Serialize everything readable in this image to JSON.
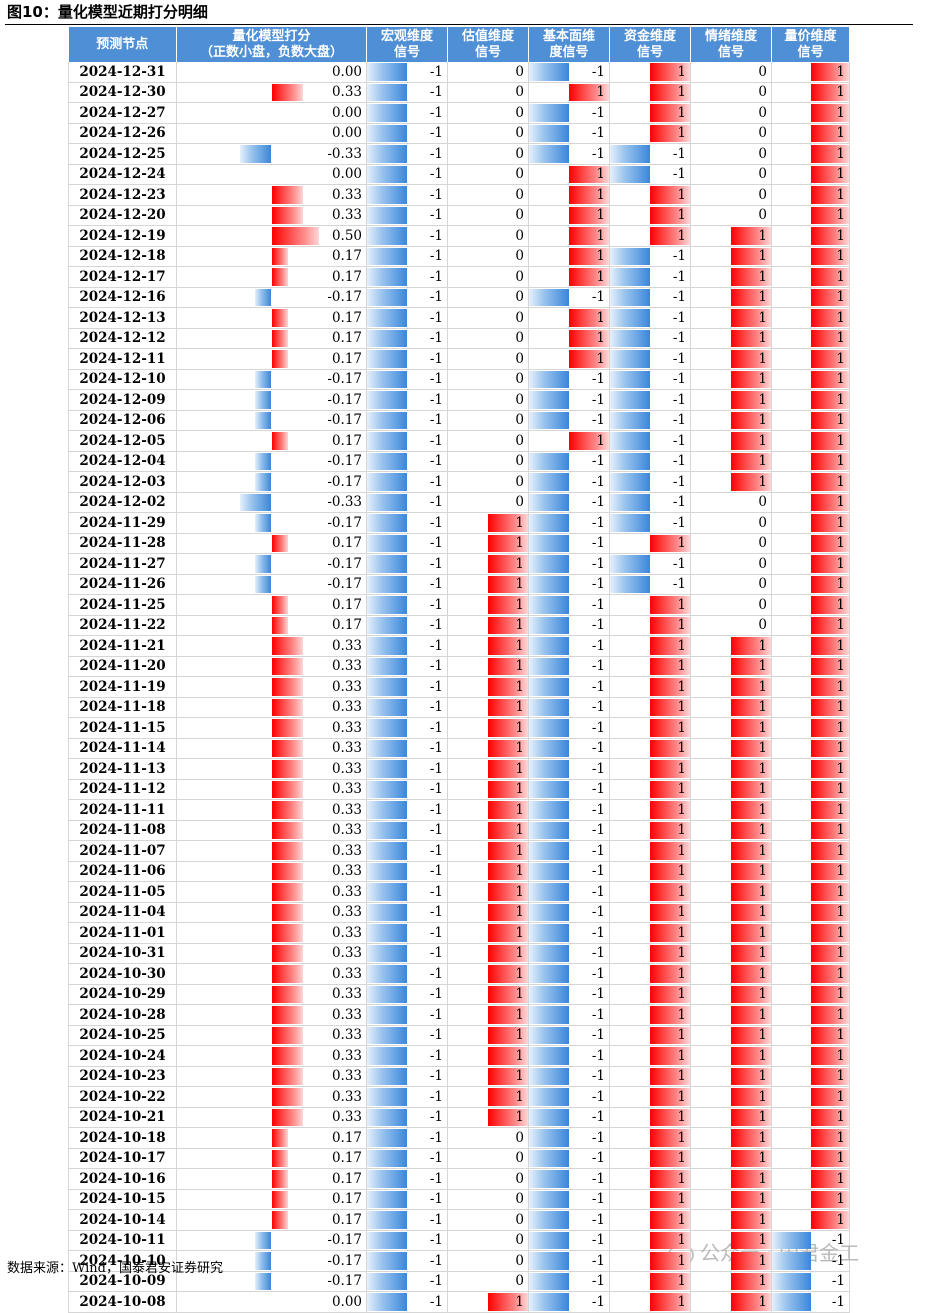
{
  "title": "图10：量化模型近期打分明细",
  "source": "数据来源：Wind，国泰君安证券研究",
  "watermark": "公众号 · 国君金工",
  "headers": [
    "预测节点",
    "量化模型打分\n（正数小盘，负数大盘）",
    "宏观维度\n信号",
    "估值维度\n信号",
    "基本面维\n度信号",
    "资金维度\n信号",
    "情绪维度\n信号",
    "量价维度\n信号"
  ],
  "colors": {
    "header": "#4f8fd6",
    "positive": "#ff0000",
    "negative": "#3a86db"
  },
  "rows": [
    [
      "2024-12-31",
      "0.00",
      "-1",
      "0",
      "-1",
      "1",
      "0",
      "1"
    ],
    [
      "2024-12-30",
      "0.33",
      "-1",
      "0",
      "1",
      "1",
      "0",
      "1"
    ],
    [
      "2024-12-27",
      "0.00",
      "-1",
      "0",
      "-1",
      "1",
      "0",
      "1"
    ],
    [
      "2024-12-26",
      "0.00",
      "-1",
      "0",
      "-1",
      "1",
      "0",
      "1"
    ],
    [
      "2024-12-25",
      "-0.33",
      "-1",
      "0",
      "-1",
      "-1",
      "0",
      "1"
    ],
    [
      "2024-12-24",
      "0.00",
      "-1",
      "0",
      "1",
      "-1",
      "0",
      "1"
    ],
    [
      "2024-12-23",
      "0.33",
      "-1",
      "0",
      "1",
      "1",
      "0",
      "1"
    ],
    [
      "2024-12-20",
      "0.33",
      "-1",
      "0",
      "1",
      "1",
      "0",
      "1"
    ],
    [
      "2024-12-19",
      "0.50",
      "-1",
      "0",
      "1",
      "1",
      "1",
      "1"
    ],
    [
      "2024-12-18",
      "0.17",
      "-1",
      "0",
      "1",
      "-1",
      "1",
      "1"
    ],
    [
      "2024-12-17",
      "0.17",
      "-1",
      "0",
      "1",
      "-1",
      "1",
      "1"
    ],
    [
      "2024-12-16",
      "-0.17",
      "-1",
      "0",
      "-1",
      "-1",
      "1",
      "1"
    ],
    [
      "2024-12-13",
      "0.17",
      "-1",
      "0",
      "1",
      "-1",
      "1",
      "1"
    ],
    [
      "2024-12-12",
      "0.17",
      "-1",
      "0",
      "1",
      "-1",
      "1",
      "1"
    ],
    [
      "2024-12-11",
      "0.17",
      "-1",
      "0",
      "1",
      "-1",
      "1",
      "1"
    ],
    [
      "2024-12-10",
      "-0.17",
      "-1",
      "0",
      "-1",
      "-1",
      "1",
      "1"
    ],
    [
      "2024-12-09",
      "-0.17",
      "-1",
      "0",
      "-1",
      "-1",
      "1",
      "1"
    ],
    [
      "2024-12-06",
      "-0.17",
      "-1",
      "0",
      "-1",
      "-1",
      "1",
      "1"
    ],
    [
      "2024-12-05",
      "0.17",
      "-1",
      "0",
      "1",
      "-1",
      "1",
      "1"
    ],
    [
      "2024-12-04",
      "-0.17",
      "-1",
      "0",
      "-1",
      "-1",
      "1",
      "1"
    ],
    [
      "2024-12-03",
      "-0.17",
      "-1",
      "0",
      "-1",
      "-1",
      "1",
      "1"
    ],
    [
      "2024-12-02",
      "-0.33",
      "-1",
      "0",
      "-1",
      "-1",
      "0",
      "1"
    ],
    [
      "2024-11-29",
      "-0.17",
      "-1",
      "1",
      "-1",
      "-1",
      "0",
      "1"
    ],
    [
      "2024-11-28",
      "0.17",
      "-1",
      "1",
      "-1",
      "1",
      "0",
      "1"
    ],
    [
      "2024-11-27",
      "-0.17",
      "-1",
      "1",
      "-1",
      "-1",
      "0",
      "1"
    ],
    [
      "2024-11-26",
      "-0.17",
      "-1",
      "1",
      "-1",
      "-1",
      "0",
      "1"
    ],
    [
      "2024-11-25",
      "0.17",
      "-1",
      "1",
      "-1",
      "1",
      "0",
      "1"
    ],
    [
      "2024-11-22",
      "0.17",
      "-1",
      "1",
      "-1",
      "1",
      "0",
      "1"
    ],
    [
      "2024-11-21",
      "0.33",
      "-1",
      "1",
      "-1",
      "1",
      "1",
      "1"
    ],
    [
      "2024-11-20",
      "0.33",
      "-1",
      "1",
      "-1",
      "1",
      "1",
      "1"
    ],
    [
      "2024-11-19",
      "0.33",
      "-1",
      "1",
      "-1",
      "1",
      "1",
      "1"
    ],
    [
      "2024-11-18",
      "0.33",
      "-1",
      "1",
      "-1",
      "1",
      "1",
      "1"
    ],
    [
      "2024-11-15",
      "0.33",
      "-1",
      "1",
      "-1",
      "1",
      "1",
      "1"
    ],
    [
      "2024-11-14",
      "0.33",
      "-1",
      "1",
      "-1",
      "1",
      "1",
      "1"
    ],
    [
      "2024-11-13",
      "0.33",
      "-1",
      "1",
      "-1",
      "1",
      "1",
      "1"
    ],
    [
      "2024-11-12",
      "0.33",
      "-1",
      "1",
      "-1",
      "1",
      "1",
      "1"
    ],
    [
      "2024-11-11",
      "0.33",
      "-1",
      "1",
      "-1",
      "1",
      "1",
      "1"
    ],
    [
      "2024-11-08",
      "0.33",
      "-1",
      "1",
      "-1",
      "1",
      "1",
      "1"
    ],
    [
      "2024-11-07",
      "0.33",
      "-1",
      "1",
      "-1",
      "1",
      "1",
      "1"
    ],
    [
      "2024-11-06",
      "0.33",
      "-1",
      "1",
      "-1",
      "1",
      "1",
      "1"
    ],
    [
      "2024-11-05",
      "0.33",
      "-1",
      "1",
      "-1",
      "1",
      "1",
      "1"
    ],
    [
      "2024-11-04",
      "0.33",
      "-1",
      "1",
      "-1",
      "1",
      "1",
      "1"
    ],
    [
      "2024-11-01",
      "0.33",
      "-1",
      "1",
      "-1",
      "1",
      "1",
      "1"
    ],
    [
      "2024-10-31",
      "0.33",
      "-1",
      "1",
      "-1",
      "1",
      "1",
      "1"
    ],
    [
      "2024-10-30",
      "0.33",
      "-1",
      "1",
      "-1",
      "1",
      "1",
      "1"
    ],
    [
      "2024-10-29",
      "0.33",
      "-1",
      "1",
      "-1",
      "1",
      "1",
      "1"
    ],
    [
      "2024-10-28",
      "0.33",
      "-1",
      "1",
      "-1",
      "1",
      "1",
      "1"
    ],
    [
      "2024-10-25",
      "0.33",
      "-1",
      "1",
      "-1",
      "1",
      "1",
      "1"
    ],
    [
      "2024-10-24",
      "0.33",
      "-1",
      "1",
      "-1",
      "1",
      "1",
      "1"
    ],
    [
      "2024-10-23",
      "0.33",
      "-1",
      "1",
      "-1",
      "1",
      "1",
      "1"
    ],
    [
      "2024-10-22",
      "0.33",
      "-1",
      "1",
      "-1",
      "1",
      "1",
      "1"
    ],
    [
      "2024-10-21",
      "0.33",
      "-1",
      "1",
      "-1",
      "1",
      "1",
      "1"
    ],
    [
      "2024-10-18",
      "0.17",
      "-1",
      "0",
      "-1",
      "1",
      "1",
      "1"
    ],
    [
      "2024-10-17",
      "0.17",
      "-1",
      "0",
      "-1",
      "1",
      "1",
      "1"
    ],
    [
      "2024-10-16",
      "0.17",
      "-1",
      "0",
      "-1",
      "1",
      "1",
      "1"
    ],
    [
      "2024-10-15",
      "0.17",
      "-1",
      "0",
      "-1",
      "1",
      "1",
      "1"
    ],
    [
      "2024-10-14",
      "0.17",
      "-1",
      "0",
      "-1",
      "1",
      "1",
      "1"
    ],
    [
      "2024-10-11",
      "-0.17",
      "-1",
      "0",
      "-1",
      "1",
      "1",
      "-1"
    ],
    [
      "2024-10-10",
      "-0.17",
      "-1",
      "0",
      "-1",
      "1",
      "1",
      "-1"
    ],
    [
      "2024-10-09",
      "-0.17",
      "-1",
      "0",
      "-1",
      "1",
      "1",
      "-1"
    ],
    [
      "2024-10-08",
      "0.00",
      "-1",
      "1",
      "-1",
      "1",
      "1",
      "-1"
    ]
  ]
}
